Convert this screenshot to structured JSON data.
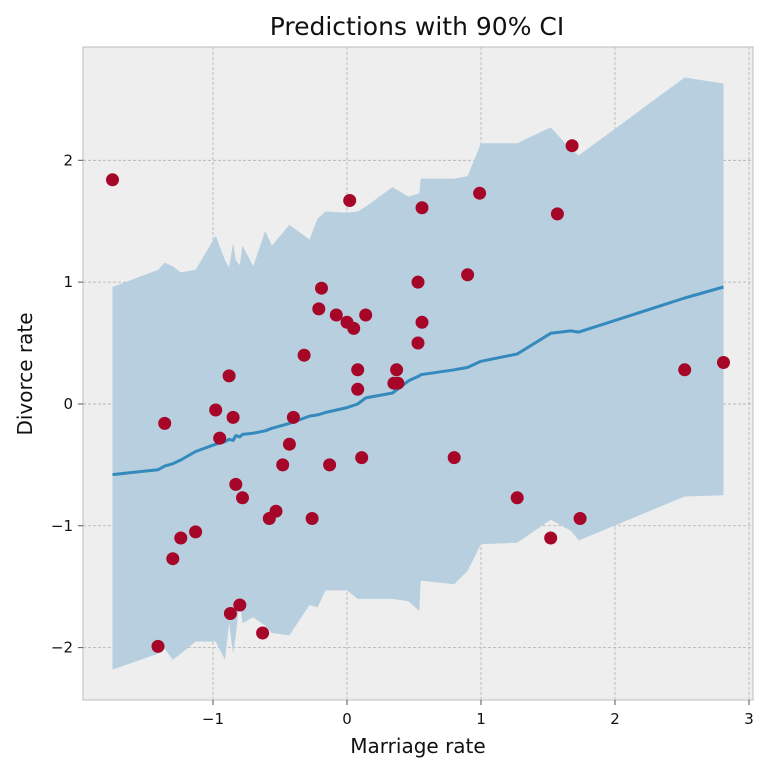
{
  "chart_data": {
    "type": "scatter",
    "title": "Predictions with 90% CI",
    "xlabel": "Marriage rate",
    "ylabel": "Divorce rate",
    "xlim": [
      -1.97,
      3.03
    ],
    "ylim": [
      -2.43,
      2.93
    ],
    "xticks": [
      -1,
      0,
      1,
      2,
      3
    ],
    "yticks": [
      -2,
      -1,
      0,
      1,
      2
    ],
    "xtick_labels": [
      "−1",
      "0",
      "1",
      "2",
      "3"
    ],
    "ytick_labels": [
      "−2",
      "−1",
      "0",
      "1",
      "2"
    ],
    "grid": true,
    "colors": {
      "background": "#eeeeee",
      "frame": "#bcbcbc",
      "band": "#b7cfdf",
      "line": "#348abd",
      "points": "#a60628"
    },
    "mean_line": {
      "x": [
        -1.75,
        -1.41,
        -1.36,
        -1.3,
        -1.24,
        -1.13,
        -0.98,
        -0.91,
        -0.88,
        -0.85,
        -0.83,
        -0.8,
        -0.78,
        -0.7,
        -0.61,
        -0.56,
        -0.43,
        -0.28,
        -0.22,
        -0.16,
        0.0,
        0.08,
        0.14,
        0.34,
        0.46,
        0.54,
        0.55,
        0.8,
        0.9,
        1.0,
        1.27,
        1.52,
        1.67,
        1.73,
        2.52,
        2.81
      ],
      "y": [
        -0.58,
        -0.54,
        -0.51,
        -0.49,
        -0.46,
        -0.39,
        -0.33,
        -0.31,
        -0.29,
        -0.3,
        -0.26,
        -0.27,
        -0.25,
        -0.24,
        -0.22,
        -0.2,
        -0.16,
        -0.1,
        -0.09,
        -0.07,
        -0.03,
        0.0,
        0.05,
        0.09,
        0.19,
        0.23,
        0.24,
        0.28,
        0.3,
        0.35,
        0.41,
        0.58,
        0.6,
        0.59,
        0.87,
        0.96
      ]
    },
    "ci_band": {
      "x": [
        -1.75,
        -1.41,
        -1.36,
        -1.3,
        -1.24,
        -1.13,
        -0.98,
        -0.91,
        -0.88,
        -0.85,
        -0.83,
        -0.8,
        -0.78,
        -0.7,
        -0.61,
        -0.56,
        -0.43,
        -0.28,
        -0.22,
        -0.16,
        0.0,
        0.08,
        0.14,
        0.34,
        0.46,
        0.54,
        0.55,
        0.8,
        0.9,
        1.0,
        1.27,
        1.52,
        1.67,
        1.73,
        2.52,
        2.81
      ],
      "upper": [
        0.96,
        1.1,
        1.16,
        1.13,
        1.08,
        1.1,
        1.38,
        1.18,
        1.12,
        1.32,
        1.18,
        1.14,
        1.3,
        1.13,
        1.42,
        1.3,
        1.47,
        1.35,
        1.52,
        1.58,
        1.57,
        1.58,
        1.62,
        1.78,
        1.7,
        1.73,
        1.85,
        1.85,
        1.87,
        2.14,
        2.14,
        2.27,
        2.09,
        2.04,
        2.68,
        2.63
      ],
      "lower": [
        -2.18,
        -2.05,
        -2.01,
        -2.1,
        -2.05,
        -1.95,
        -1.95,
        -2.1,
        -1.8,
        -2.05,
        -1.9,
        -1.6,
        -1.8,
        -1.75,
        -1.82,
        -1.88,
        -1.9,
        -1.65,
        -1.67,
        -1.53,
        -1.53,
        -1.6,
        -1.6,
        -1.6,
        -1.62,
        -1.7,
        -1.45,
        -1.48,
        -1.37,
        -1.15,
        -1.14,
        -0.95,
        -1.04,
        -1.12,
        -0.76,
        -0.75
      ]
    },
    "points": [
      {
        "x": -1.75,
        "y": 1.84
      },
      {
        "x": -1.36,
        "y": -0.16
      },
      {
        "x": -1.41,
        "y": -1.99
      },
      {
        "x": -1.3,
        "y": -1.27
      },
      {
        "x": -1.24,
        "y": -1.1
      },
      {
        "x": -1.13,
        "y": -1.05
      },
      {
        "x": -0.98,
        "y": -0.05
      },
      {
        "x": -0.95,
        "y": -0.28
      },
      {
        "x": -0.88,
        "y": 0.23
      },
      {
        "x": -0.85,
        "y": -0.11
      },
      {
        "x": -0.83,
        "y": -0.66
      },
      {
        "x": -0.78,
        "y": -0.77
      },
      {
        "x": -0.87,
        "y": -1.72
      },
      {
        "x": -0.8,
        "y": -1.65
      },
      {
        "x": -0.63,
        "y": -1.88
      },
      {
        "x": -0.58,
        "y": -0.94
      },
      {
        "x": -0.53,
        "y": -0.88
      },
      {
        "x": -0.48,
        "y": -0.5
      },
      {
        "x": -0.43,
        "y": -0.33
      },
      {
        "x": -0.4,
        "y": -0.11
      },
      {
        "x": -0.32,
        "y": 0.4
      },
      {
        "x": -0.26,
        "y": -0.94
      },
      {
        "x": -0.21,
        "y": 0.78
      },
      {
        "x": -0.19,
        "y": 0.95
      },
      {
        "x": -0.13,
        "y": -0.5
      },
      {
        "x": -0.08,
        "y": 0.73
      },
      {
        "x": 0.0,
        "y": 0.67
      },
      {
        "x": 0.05,
        "y": 0.62
      },
      {
        "x": 0.02,
        "y": 1.67
      },
      {
        "x": 0.08,
        "y": 0.28
      },
      {
        "x": 0.08,
        "y": 0.12
      },
      {
        "x": 0.11,
        "y": -0.44
      },
      {
        "x": 0.14,
        "y": 0.73
      },
      {
        "x": 0.35,
        "y": 0.17
      },
      {
        "x": 0.37,
        "y": 0.28
      },
      {
        "x": 0.38,
        "y": 0.17
      },
      {
        "x": 0.53,
        "y": 1.0
      },
      {
        "x": 0.53,
        "y": 0.5
      },
      {
        "x": 0.56,
        "y": 0.67
      },
      {
        "x": 0.56,
        "y": 1.61
      },
      {
        "x": 0.8,
        "y": -0.44
      },
      {
        "x": 0.9,
        "y": 1.06
      },
      {
        "x": 0.99,
        "y": 1.73
      },
      {
        "x": 1.27,
        "y": -0.77
      },
      {
        "x": 1.52,
        "y": -1.1
      },
      {
        "x": 1.57,
        "y": 1.56
      },
      {
        "x": 1.68,
        "y": 2.12
      },
      {
        "x": 1.74,
        "y": -0.94
      },
      {
        "x": 2.52,
        "y": 0.28
      },
      {
        "x": 2.81,
        "y": 0.34
      }
    ]
  }
}
